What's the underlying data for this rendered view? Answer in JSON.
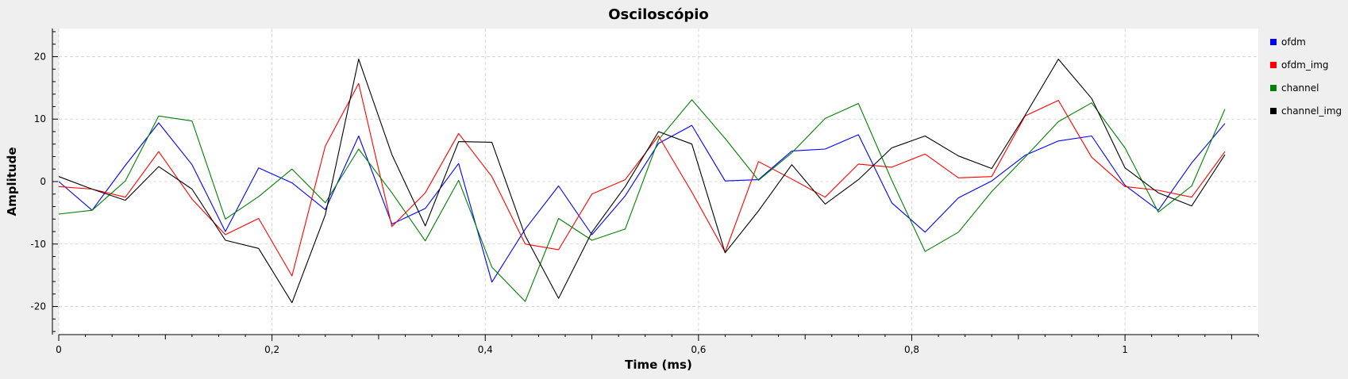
{
  "window": {
    "background": "#efefef",
    "plot_background": "#ffffff"
  },
  "chart_data": {
    "type": "line",
    "title": "Osciloscópio",
    "xlabel": "Time (ms)",
    "ylabel": "Amplitude",
    "xlim": [
      0,
      1.125
    ],
    "ylim": [
      -24.5,
      24.5
    ],
    "x_ticks": [
      0,
      0.2,
      0.4,
      0.6,
      0.8,
      1
    ],
    "x_tick_labels": [
      "0",
      "0,2",
      "0,4",
      "0,6",
      "0,8",
      "1"
    ],
    "y_ticks": [
      -20,
      -10,
      0,
      10,
      20
    ],
    "y_tick_labels": [
      "-20",
      "-10",
      "0",
      "10",
      "20"
    ],
    "grid": true,
    "legend_position": "right",
    "x": [
      0,
      0.03125,
      0.0625,
      0.09375,
      0.125,
      0.15625,
      0.1875,
      0.21875,
      0.25,
      0.28125,
      0.3125,
      0.34375,
      0.375,
      0.40625,
      0.4375,
      0.46875,
      0.5,
      0.53125,
      0.5625,
      0.59375,
      0.625,
      0.65625,
      0.6875,
      0.71875,
      0.75,
      0.78125,
      0.8125,
      0.84375,
      0.875,
      0.90625,
      0.9375,
      0.96875,
      1.0,
      1.03125,
      1.0625,
      1.09375
    ],
    "series": [
      {
        "name": "ofdm",
        "color": "#0000ff",
        "values": [
          0.0,
          -4.6,
          2.6,
          9.4,
          2.7,
          -8.0,
          2.2,
          -0.2,
          -4.5,
          7.3,
          -6.8,
          -4.3,
          2.9,
          -16.1,
          -7.6,
          -0.7,
          -8.5,
          -2.3,
          6.1,
          9.0,
          0.1,
          0.3,
          4.9,
          5.2,
          7.5,
          -3.4,
          -8.1,
          -2.6,
          0.1,
          4.2,
          6.5,
          7.3,
          -0.6,
          -4.6,
          3.0,
          9.3
        ]
      },
      {
        "name": "ofdm_img",
        "color": "#ff0000",
        "values": [
          -0.8,
          -1.2,
          -2.5,
          4.8,
          -2.8,
          -8.5,
          -5.9,
          -15.1,
          5.7,
          15.7,
          -7.2,
          -1.8,
          7.7,
          0.8,
          -10.0,
          -10.9,
          -2.0,
          0.3,
          7.3,
          -1.7,
          -11.3,
          3.2,
          0.4,
          -2.5,
          2.8,
          2.3,
          4.4,
          0.6,
          0.8,
          10.5,
          13.0,
          3.9,
          -0.8,
          -1.4,
          -2.5,
          4.8
        ]
      },
      {
        "name": "channel",
        "color": "#008000",
        "values": [
          -5.2,
          -4.6,
          0.1,
          10.5,
          9.7,
          -6.0,
          -2.4,
          2.0,
          -3.4,
          5.2,
          -1.8,
          -9.5,
          0.2,
          -13.7,
          -19.2,
          -5.9,
          -9.4,
          -7.6,
          6.7,
          13.1,
          6.9,
          0.2,
          4.6,
          10.1,
          12.5,
          0.2,
          -11.2,
          -8.1,
          -1.6,
          3.9,
          9.6,
          12.6,
          5.4,
          -4.9,
          -0.7,
          11.6
        ]
      },
      {
        "name": "channel_img",
        "color": "#000000",
        "values": [
          0.8,
          -1.2,
          -3.0,
          2.4,
          -1.2,
          -9.4,
          -10.7,
          -19.4,
          -5.3,
          19.6,
          4.3,
          -7.1,
          6.4,
          6.3,
          -8.7,
          -18.7,
          -8.1,
          -0.8,
          8.0,
          6.0,
          -11.4,
          -4.7,
          2.7,
          -3.6,
          0.3,
          5.4,
          7.3,
          4.1,
          2.1,
          10.6,
          19.6,
          13.3,
          2.2,
          -1.8,
          -3.9,
          4.3
        ]
      }
    ]
  }
}
